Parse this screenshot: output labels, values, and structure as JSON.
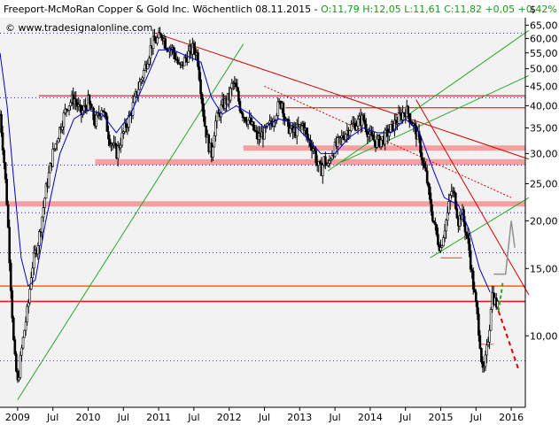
{
  "header": {
    "title": "Freeport-McMoRan Copper & Gold Inc. Wöchentlich  08.11.2015 - ",
    "ohlc": "O:11,79 H:12,05 L:11,61 C:11,82 +0,05 +0,42%",
    "source": "© www.tradesignalonline.com",
    "currency": "$"
  },
  "colors": {
    "background": "#ffffff",
    "plot_background": "#f2f2f2",
    "candles": "#000000",
    "moving_average": "#0000c8",
    "trend_red": "#d40000",
    "support_zone": "#f4a0a0",
    "horizontal_red": "#e02020",
    "horizontal_orange": "#f07020",
    "channel_green": "#2aa62a",
    "dotted_grid": "#0000aa",
    "forecast_grey": "#909090",
    "forecast_red": "#e00000",
    "forecast_green": "#20b020"
  },
  "chart_data": {
    "type": "candlestick",
    "y_scale": "log",
    "ylim": [
      6.5,
      68
    ],
    "y_ticks": [
      "65,00",
      "60,00",
      "55,00",
      "50,00",
      "45,00",
      "40,00",
      "35,00",
      "30,00",
      "25,00",
      "20,00",
      "15,00",
      "10,00"
    ],
    "y_tick_values": [
      65,
      60,
      55,
      50,
      45,
      40,
      35,
      30,
      25,
      20,
      15,
      10
    ],
    "x_range": [
      2008.75,
      2016.2
    ],
    "x_ticks": [
      {
        "label": "2009",
        "t": 2009.0
      },
      {
        "label": "Jul",
        "t": 2009.5
      },
      {
        "label": "2010",
        "t": 2010.0
      },
      {
        "label": "Jul",
        "t": 2010.5
      },
      {
        "label": "2011",
        "t": 2011.0
      },
      {
        "label": "Jul",
        "t": 2011.5
      },
      {
        "label": "2012",
        "t": 2012.0
      },
      {
        "label": "Jul",
        "t": 2012.5
      },
      {
        "label": "2013",
        "t": 2013.0
      },
      {
        "label": "Jul",
        "t": 2013.5
      },
      {
        "label": "2014",
        "t": 2014.0
      },
      {
        "label": "Jul",
        "t": 2014.5
      },
      {
        "label": "2015",
        "t": 2015.0
      },
      {
        "label": "Jul",
        "t": 2015.5
      },
      {
        "label": "2016",
        "t": 2016.0
      }
    ],
    "dotted_levels": [
      62,
      42,
      28,
      21,
      16.5,
      8.6
    ],
    "price_path": [
      [
        2008.75,
        38
      ],
      [
        2008.8,
        30
      ],
      [
        2008.85,
        22
      ],
      [
        2008.9,
        14
      ],
      [
        2008.95,
        9
      ],
      [
        2009.0,
        7.5
      ],
      [
        2009.05,
        9
      ],
      [
        2009.1,
        10.5
      ],
      [
        2009.15,
        12
      ],
      [
        2009.2,
        15
      ],
      [
        2009.3,
        18
      ],
      [
        2009.4,
        24
      ],
      [
        2009.5,
        30
      ],
      [
        2009.6,
        35
      ],
      [
        2009.7,
        40
      ],
      [
        2009.8,
        42
      ],
      [
        2009.9,
        38
      ],
      [
        2010.0,
        41
      ],
      [
        2010.1,
        36
      ],
      [
        2010.2,
        40
      ],
      [
        2010.3,
        33
      ],
      [
        2010.4,
        30
      ],
      [
        2010.5,
        34
      ],
      [
        2010.6,
        38
      ],
      [
        2010.7,
        44
      ],
      [
        2010.8,
        50
      ],
      [
        2010.9,
        58
      ],
      [
        2011.0,
        60
      ],
      [
        2011.05,
        62
      ],
      [
        2011.1,
        58
      ],
      [
        2011.2,
        56
      ],
      [
        2011.3,
        50
      ],
      [
        2011.4,
        54
      ],
      [
        2011.5,
        57
      ],
      [
        2011.55,
        54
      ],
      [
        2011.6,
        44
      ],
      [
        2011.65,
        36
      ],
      [
        2011.7,
        32
      ],
      [
        2011.75,
        30
      ],
      [
        2011.8,
        36
      ],
      [
        2011.9,
        40
      ],
      [
        2012.0,
        42
      ],
      [
        2012.05,
        46
      ],
      [
        2012.1,
        44
      ],
      [
        2012.15,
        40
      ],
      [
        2012.2,
        38
      ],
      [
        2012.3,
        36
      ],
      [
        2012.4,
        33
      ],
      [
        2012.5,
        34
      ],
      [
        2012.6,
        36
      ],
      [
        2012.7,
        40
      ],
      [
        2012.75,
        41
      ],
      [
        2012.8,
        36
      ],
      [
        2012.9,
        34
      ],
      [
        2013.0,
        35
      ],
      [
        2013.05,
        36
      ],
      [
        2013.1,
        33
      ],
      [
        2013.2,
        31
      ],
      [
        2013.25,
        28
      ],
      [
        2013.3,
        27
      ],
      [
        2013.35,
        29
      ],
      [
        2013.4,
        27.5
      ],
      [
        2013.45,
        30
      ],
      [
        2013.5,
        31
      ],
      [
        2013.6,
        33
      ],
      [
        2013.7,
        35
      ],
      [
        2013.8,
        36
      ],
      [
        2013.9,
        37
      ],
      [
        2014.0,
        33
      ],
      [
        2014.1,
        32
      ],
      [
        2014.2,
        33
      ],
      [
        2014.3,
        35
      ],
      [
        2014.4,
        37
      ],
      [
        2014.5,
        39
      ],
      [
        2014.55,
        38
      ],
      [
        2014.6,
        36
      ],
      [
        2014.7,
        32
      ],
      [
        2014.75,
        28
      ],
      [
        2014.8,
        26
      ],
      [
        2014.85,
        22
      ],
      [
        2014.9,
        20
      ],
      [
        2014.95,
        18
      ],
      [
        2015.0,
        17
      ],
      [
        2015.05,
        19
      ],
      [
        2015.1,
        21
      ],
      [
        2015.15,
        24
      ],
      [
        2015.2,
        23
      ],
      [
        2015.25,
        20
      ],
      [
        2015.3,
        21
      ],
      [
        2015.35,
        19
      ],
      [
        2015.4,
        17
      ],
      [
        2015.45,
        14
      ],
      [
        2015.5,
        12
      ],
      [
        2015.55,
        10
      ],
      [
        2015.6,
        7.8
      ],
      [
        2015.65,
        9
      ],
      [
        2015.7,
        11
      ],
      [
        2015.72,
        13
      ],
      [
        2015.77,
        12.3
      ],
      [
        2015.82,
        11.8
      ]
    ],
    "ma_path": [
      [
        2008.75,
        55
      ],
      [
        2008.85,
        40
      ],
      [
        2008.95,
        25
      ],
      [
        2009.05,
        16
      ],
      [
        2009.15,
        13.5
      ],
      [
        2009.25,
        14
      ],
      [
        2009.4,
        20
      ],
      [
        2009.6,
        30
      ],
      [
        2009.8,
        37
      ],
      [
        2010.0,
        39
      ],
      [
        2010.2,
        38
      ],
      [
        2010.4,
        34
      ],
      [
        2010.6,
        38
      ],
      [
        2010.8,
        46
      ],
      [
        2011.0,
        56
      ],
      [
        2011.2,
        56
      ],
      [
        2011.4,
        54
      ],
      [
        2011.6,
        52
      ],
      [
        2011.75,
        42
      ],
      [
        2011.9,
        38
      ],
      [
        2012.1,
        40
      ],
      [
        2012.3,
        38
      ],
      [
        2012.5,
        35
      ],
      [
        2012.7,
        37
      ],
      [
        2012.9,
        36
      ],
      [
        2013.1,
        33
      ],
      [
        2013.3,
        30
      ],
      [
        2013.5,
        30
      ],
      [
        2013.7,
        33
      ],
      [
        2013.9,
        35
      ],
      [
        2014.1,
        34
      ],
      [
        2014.3,
        34
      ],
      [
        2014.5,
        37
      ],
      [
        2014.7,
        34
      ],
      [
        2014.9,
        27
      ],
      [
        2015.05,
        23
      ],
      [
        2015.25,
        22
      ],
      [
        2015.4,
        19
      ],
      [
        2015.55,
        15
      ],
      [
        2015.7,
        13
      ]
    ],
    "support_zones": [
      [
        30.5,
        31.5
      ],
      [
        28,
        29
      ],
      [
        21.8,
        22.5
      ]
    ],
    "horizontal_lines": [
      {
        "value": 42.5,
        "color": "#d40000",
        "t_start": 2009.3
      },
      {
        "value": 39.5,
        "color": "#d40000",
        "t_start": 2012.8
      },
      {
        "value": 13.5,
        "color": "#f07020",
        "t_start": 2008.75
      },
      {
        "value": 12.3,
        "color": "#e02020",
        "t_start": 2008.75
      }
    ],
    "trend_lines": [
      {
        "from": [
          2010.95,
          62
        ],
        "to": [
          2016.25,
          29
        ],
        "color": "#d40000",
        "dash": false
      },
      {
        "from": [
          2012.5,
          45
        ],
        "to": [
          2016.0,
          23
        ],
        "color": "#d40000",
        "dash": true
      },
      {
        "from": [
          2014.65,
          41.5
        ],
        "to": [
          2016.25,
          12.8
        ],
        "color": "#d40000",
        "dash": false
      },
      {
        "from": [
          2009.0,
          6.8
        ],
        "to": [
          2012.2,
          58
        ],
        "color": "#2aa62a",
        "dash": false
      },
      {
        "from": [
          2013.4,
          27
        ],
        "to": [
          2016.25,
          63
        ],
        "color": "#2aa62a",
        "dash": false
      },
      {
        "from": [
          2013.6,
          28.5
        ],
        "to": [
          2016.25,
          48
        ],
        "color": "#2aa62a",
        "dash": false
      },
      {
        "from": [
          2014.85,
          16
        ],
        "to": [
          2016.25,
          23
        ],
        "color": "#2aa62a",
        "dash": false
      }
    ],
    "forecast_grey": [
      [
        2015.75,
        14.5
      ],
      [
        2015.92,
        14.5
      ],
      [
        2016.0,
        20
      ],
      [
        2016.05,
        17
      ]
    ],
    "forecast_red": [
      [
        2015.82,
        11.6
      ],
      [
        2016.1,
        8.2
      ]
    ],
    "forecast_green": [
      [
        2015.82,
        11.6
      ],
      [
        2015.88,
        13.8
      ]
    ],
    "minor_horizontal": [
      [
        9.5,
        2015.55,
        2015.75
      ],
      [
        16,
        2015.0,
        2015.3
      ]
    ]
  }
}
